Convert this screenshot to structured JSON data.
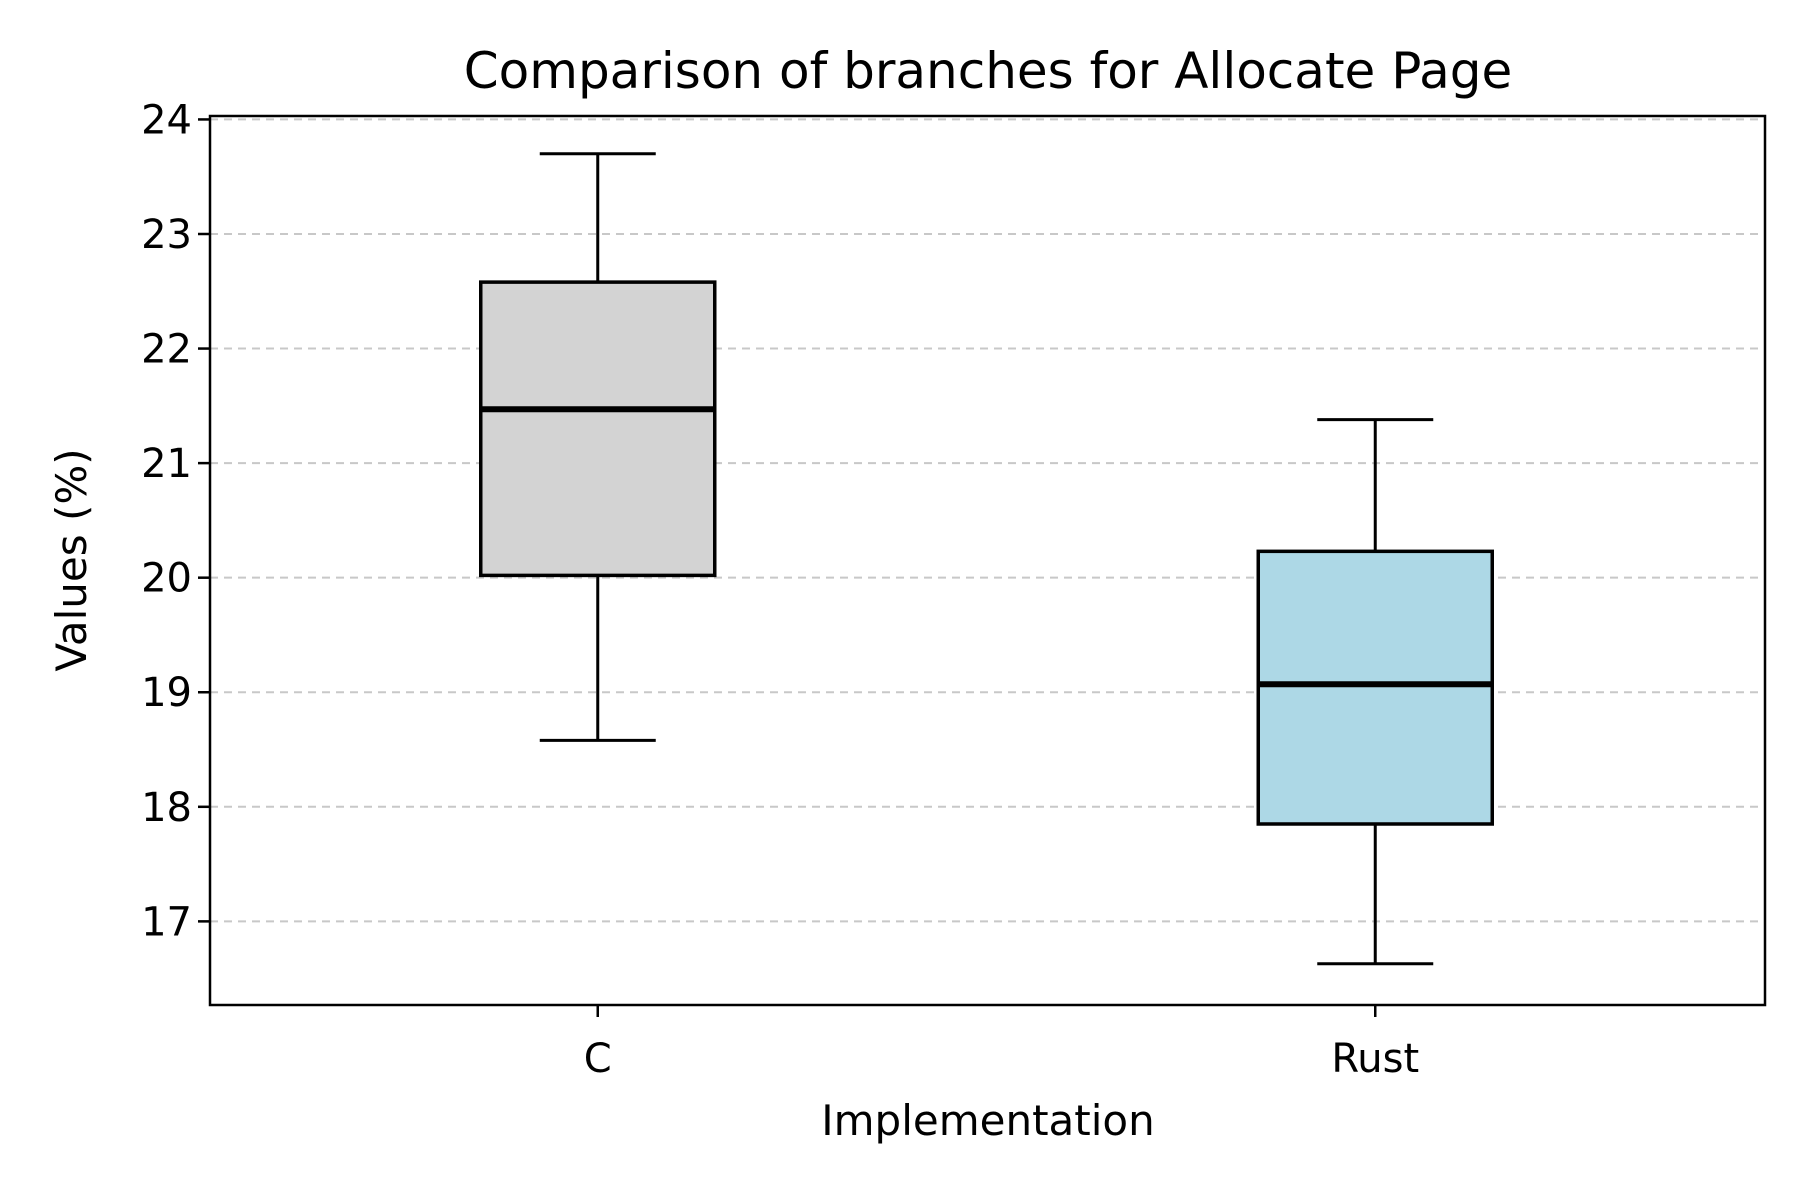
{
  "chart_data": {
    "type": "box",
    "title": "Comparison of branches for Allocate Page",
    "xlabel": "Implementation",
    "ylabel": "Values (%)",
    "ylim": [
      16.27,
      24.03
    ],
    "yticks": [
      17,
      18,
      19,
      20,
      21,
      22,
      23,
      24
    ],
    "grid": "y-dashed",
    "categories": [
      "C",
      "Rust"
    ],
    "boxes": [
      {
        "category": "C",
        "whisker_low": 18.58,
        "q1": 20.02,
        "median": 21.47,
        "q3": 22.58,
        "whisker_high": 23.7,
        "color": "#d3d3d3"
      },
      {
        "category": "Rust",
        "whisker_low": 16.63,
        "q1": 17.85,
        "median": 19.07,
        "q3": 20.23,
        "whisker_high": 21.38,
        "color": "#add8e6"
      }
    ]
  }
}
